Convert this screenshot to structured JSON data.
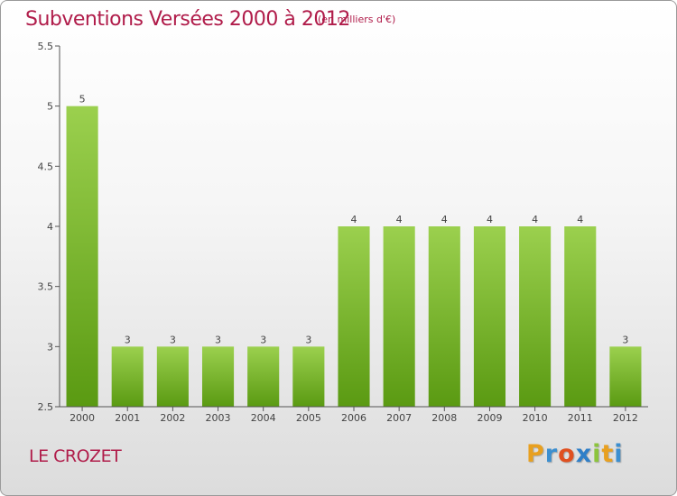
{
  "header": {
    "title": "Subventions Versées 2000 à 2012",
    "subtitle": "(en milliers d'€)"
  },
  "footer": {
    "commune": "LE CROZET",
    "logo_text": "Proxiti"
  },
  "colors": {
    "title": "#b01c4a",
    "bar_light": "#9bd04e",
    "bar_dark": "#5a9a12",
    "axis": "#333333"
  },
  "chart_data": {
    "type": "bar",
    "categories": [
      "2000",
      "2001",
      "2002",
      "2003",
      "2004",
      "2005",
      "2006",
      "2007",
      "2008",
      "2009",
      "2010",
      "2011",
      "2012"
    ],
    "values": [
      5,
      3,
      3,
      3,
      3,
      3,
      4,
      4,
      4,
      4,
      4,
      4,
      3
    ],
    "data_labels": [
      "5",
      "3",
      "3",
      "3",
      "3",
      "3",
      "4",
      "4",
      "4",
      "4",
      "4",
      "4",
      "3"
    ],
    "title": "Subventions Versées 2000 à 2012",
    "xlabel": "",
    "ylabel": "",
    "ylim": [
      2.5,
      5.5
    ],
    "yticks": [
      2.5,
      3,
      3.5,
      4,
      4.5,
      5,
      5.5
    ],
    "ytick_labels": [
      "2.5",
      "3",
      "3.5",
      "4",
      "4.5",
      "5",
      "5.5"
    ],
    "grid": false,
    "legend": "none"
  }
}
